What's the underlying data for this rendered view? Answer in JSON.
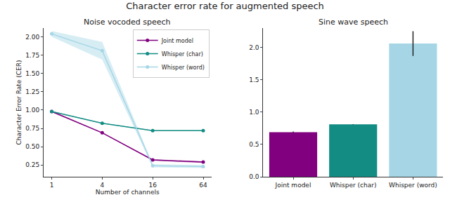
{
  "title": "Character error rate for augmented speech",
  "chart_data": [
    {
      "type": "line",
      "title": "Noise vocoded speech",
      "x_label": "Number of channels",
      "y_label": "Character Error Rate (CER)",
      "x": [
        1,
        4,
        16,
        64
      ],
      "log": "x",
      "xlim": [
        0.8,
        80
      ],
      "xticks": [
        1,
        4,
        16,
        64
      ],
      "ylim": [
        0.09,
        2.12
      ],
      "yticks": [
        {
          "value": 0.25,
          "label": "0.25"
        },
        {
          "value": 0.5,
          "label": "0.50"
        },
        {
          "value": 0.75,
          "label": "0.75"
        },
        {
          "value": 1,
          "label": "1.00"
        },
        {
          "value": 1.25,
          "label": "1.25"
        },
        {
          "value": 1.5,
          "label": "1.50"
        },
        {
          "value": 1.75,
          "label": "1.75"
        },
        {
          "value": 2,
          "label": "2.00"
        }
      ],
      "grid": false,
      "legend": "upper right",
      "marker": "circle",
      "series": [
        {
          "name": "Joint model",
          "color": "#800080",
          "values": [
            0.98,
            0.69,
            0.32,
            0.29
          ],
          "error": [
            0.01,
            0.005,
            0.01,
            0.01
          ]
        },
        {
          "name": "Whisper (char)",
          "color": "#138d84",
          "values": [
            0.98,
            0.82,
            0.72,
            0.72
          ],
          "error": [
            0.005,
            0.005,
            0.005,
            0.005
          ]
        },
        {
          "name": "Whisper (word)",
          "color": "#a6d6e6",
          "values": [
            2.04,
            1.81,
            0.24,
            0.23
          ],
          "error": [
            0.04,
            0.12,
            0.02,
            0.02
          ]
        }
      ]
    },
    {
      "type": "bar",
      "title": "Sine wave speech",
      "categories": [
        "Joint model",
        "Whisper (char)",
        "Whisper (word)"
      ],
      "values": [
        0.69,
        0.81,
        2.06
      ],
      "error": [
        0.01,
        0.005,
        0.19
      ],
      "colors": [
        "#800080",
        "#138d84",
        "#a6d6e6"
      ],
      "ylim": [
        0,
        2.3
      ],
      "yticks": [
        {
          "value": 0,
          "label": "0.0"
        },
        {
          "value": 0.5,
          "label": "0.5"
        },
        {
          "value": 1,
          "label": "1.0"
        },
        {
          "value": 1.5,
          "label": "1.5"
        },
        {
          "value": 2,
          "label": "2.0"
        }
      ],
      "grid": false
    }
  ]
}
